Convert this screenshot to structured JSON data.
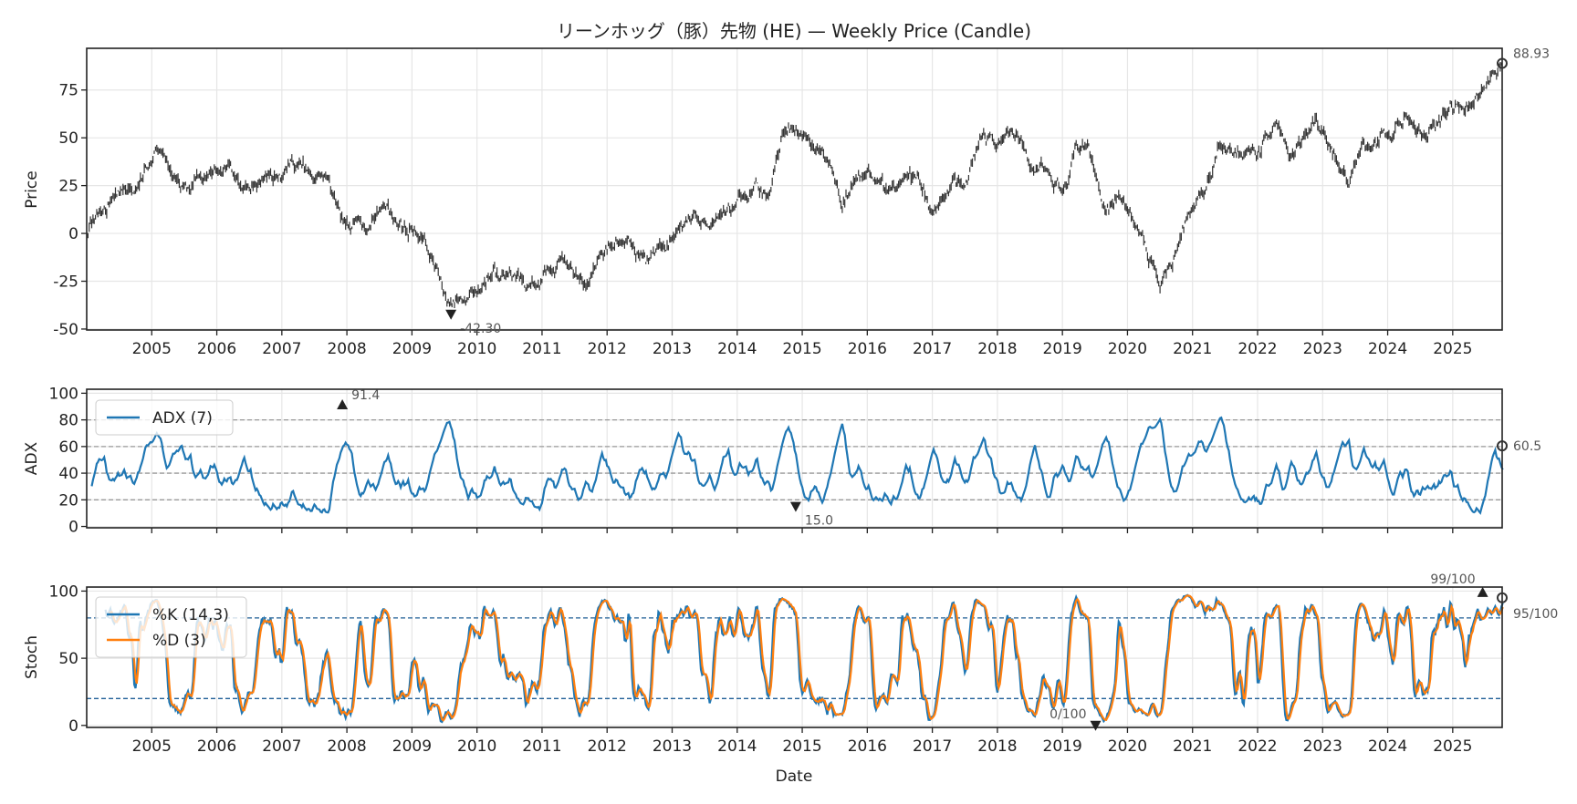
{
  "chart_data": [
    {
      "type": "line",
      "subtype": "candlestick-weekly",
      "title": "リーンホッグ（豚）先物 (HE) — Weekly Price (Candle)",
      "ylabel": "Price",
      "xlabel": "",
      "xlim": [
        "2004-01",
        "2025-10"
      ],
      "ylim": [
        -50.5,
        96.8
      ],
      "yticks": [
        "-50",
        "-25",
        "0",
        "25",
        "50",
        "75"
      ],
      "xticks": [
        "2005",
        "2006",
        "2007",
        "2008",
        "2009",
        "2010",
        "2011",
        "2012",
        "2013",
        "2014",
        "2015",
        "2016",
        "2017",
        "2018",
        "2019",
        "2020",
        "2021",
        "2022",
        "2023",
        "2024",
        "2025"
      ],
      "grid": true,
      "color": "#333333",
      "series_approx": {
        "x": [
          2004.0,
          2004.2,
          2004.5,
          2004.8,
          2005.0,
          2005.1,
          2005.3,
          2005.5,
          2005.8,
          2006.0,
          2006.2,
          2006.4,
          2006.6,
          2006.8,
          2007.0,
          2007.2,
          2007.5,
          2007.7,
          2007.9,
          2008.1,
          2008.3,
          2008.6,
          2008.9,
          2009.2,
          2009.45,
          2009.6,
          2009.8,
          2010.2,
          2010.6,
          2010.9,
          2011.3,
          2011.7,
          2011.9,
          2012.3,
          2012.6,
          2012.9,
          2013.3,
          2013.6,
          2013.9,
          2014.3,
          2014.5,
          2014.7,
          2014.9,
          2015.2,
          2015.4,
          2015.6,
          2015.8,
          2016.1,
          2016.3,
          2016.6,
          2016.8,
          2017.0,
          2017.3,
          2017.5,
          2017.8,
          2018.0,
          2018.3,
          2018.5,
          2018.8,
          2019.0,
          2019.2,
          2019.4,
          2019.6,
          2019.9,
          2020.1,
          2020.3,
          2020.5,
          2020.7,
          2020.9,
          2021.2,
          2021.4,
          2021.7,
          2022.0,
          2022.3,
          2022.5,
          2022.9,
          2023.2,
          2023.4,
          2023.6,
          2024.0,
          2024.3,
          2024.6,
          2025.0,
          2025.3,
          2025.76
        ],
        "close": [
          -3,
          10,
          18,
          25,
          38,
          43,
          35,
          22,
          30,
          36,
          32,
          22,
          25,
          32,
          30,
          35,
          30,
          27,
          10,
          5,
          0,
          15,
          3,
          -5,
          -25,
          -40,
          -35,
          -22,
          -20,
          -28,
          -15,
          -25,
          -10,
          -5,
          -18,
          -5,
          8,
          2,
          12,
          30,
          22,
          50,
          55,
          45,
          40,
          15,
          25,
          30,
          22,
          30,
          30,
          10,
          25,
          30,
          50,
          45,
          52,
          40,
          30,
          22,
          45,
          45,
          15,
          15,
          5,
          -10,
          -25,
          -15,
          5,
          25,
          45,
          45,
          40,
          58,
          40,
          60,
          40,
          25,
          45,
          50,
          62,
          55,
          65,
          70,
          89
        ]
      },
      "annotations": [
        {
          "label": "88.93",
          "date": 2025.76,
          "value": 88.93,
          "marker": "circle"
        },
        {
          "label": "-42.30",
          "date": 2009.6,
          "value": -42.3,
          "marker": "triangle-down"
        }
      ]
    },
    {
      "type": "line",
      "ylabel": "ADX",
      "ylim": [
        -1,
        103
      ],
      "yticks": [
        "0",
        "20",
        "40",
        "60",
        "80",
        "100"
      ],
      "reference_lines": [
        20,
        40,
        60,
        80
      ],
      "grid": true,
      "legend": "top-left",
      "series": [
        {
          "name": "ADX (7)",
          "color": "#1f77b4"
        }
      ],
      "annotations": [
        {
          "label": "91.4",
          "date": 2007.93,
          "value": 91.4,
          "marker": "triangle-up"
        },
        {
          "label": "15.0",
          "date": 2014.9,
          "value": 15.0,
          "marker": "triangle-down"
        },
        {
          "label": "60.5",
          "date": 2025.76,
          "value": 60.5,
          "marker": "circle"
        }
      ]
    },
    {
      "type": "line",
      "ylabel": "Stoch",
      "xlabel": "Date",
      "ylim": [
        -1.5,
        103
      ],
      "yticks": [
        "0",
        "50",
        "100"
      ],
      "reference_lines": [
        20,
        80
      ],
      "grid": true,
      "legend": "top-left",
      "series": [
        {
          "name": "%K (14,3)",
          "color": "#1f77b4"
        },
        {
          "name": "%D (3)",
          "color": "#ff7f0e"
        }
      ],
      "annotations": [
        {
          "label": "99/100",
          "date": 2025.46,
          "value": 99,
          "marker": "triangle-up"
        },
        {
          "label": "95/100",
          "date": 2025.76,
          "value": 95,
          "marker": "circle"
        },
        {
          "label": "0/100",
          "date": 2019.51,
          "value": 0,
          "marker": "triangle-down"
        }
      ]
    }
  ]
}
